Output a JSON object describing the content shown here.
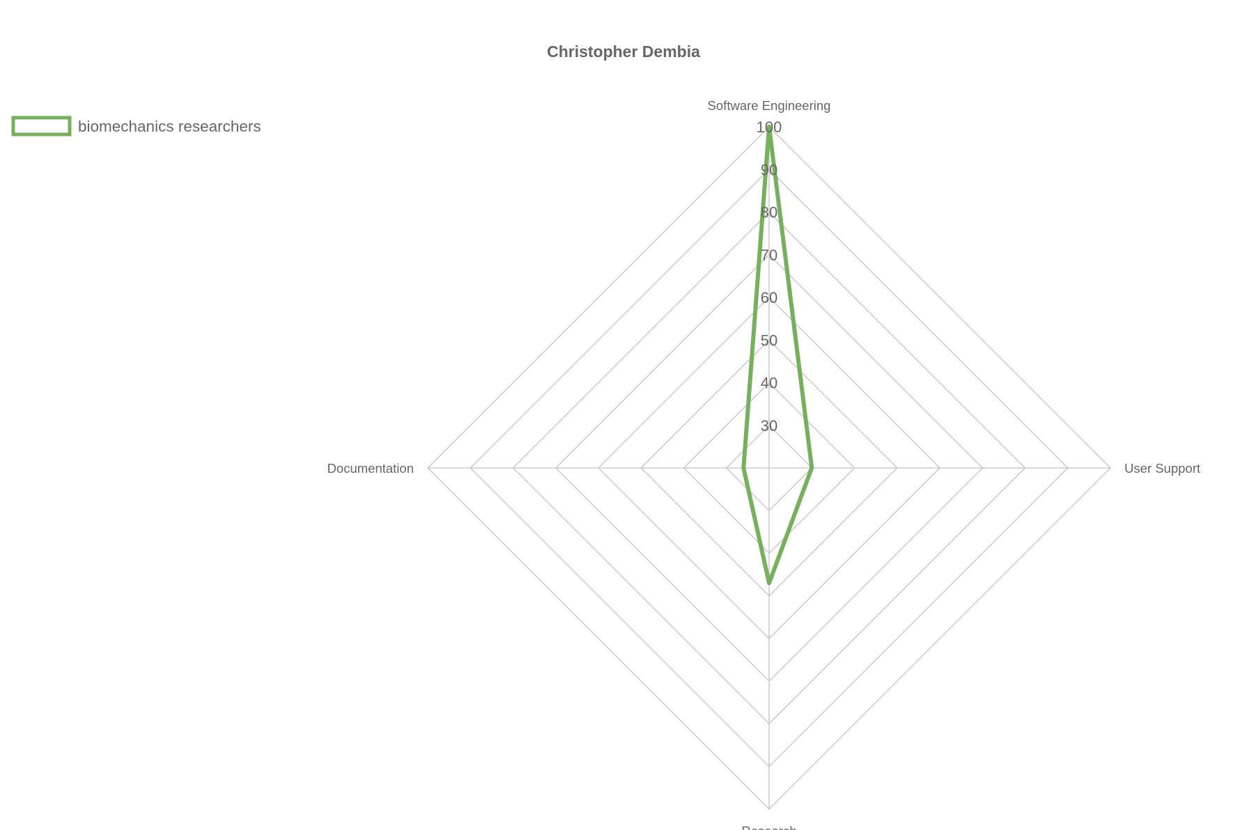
{
  "chart_data": {
    "type": "radar",
    "title": "Christopher Dembia",
    "axes": [
      "Software Engineering",
      "User Support",
      "Research",
      "Documentation"
    ],
    "ticks": [
      30,
      40,
      50,
      60,
      70,
      80,
      90,
      100
    ],
    "r_range": [
      20,
      100
    ],
    "grid": true,
    "legend_position": "top-left",
    "series": [
      {
        "name": "biomechanics researchers",
        "values": [
          100,
          30,
          47,
          26
        ],
        "color": "#77b05d"
      }
    ]
  }
}
